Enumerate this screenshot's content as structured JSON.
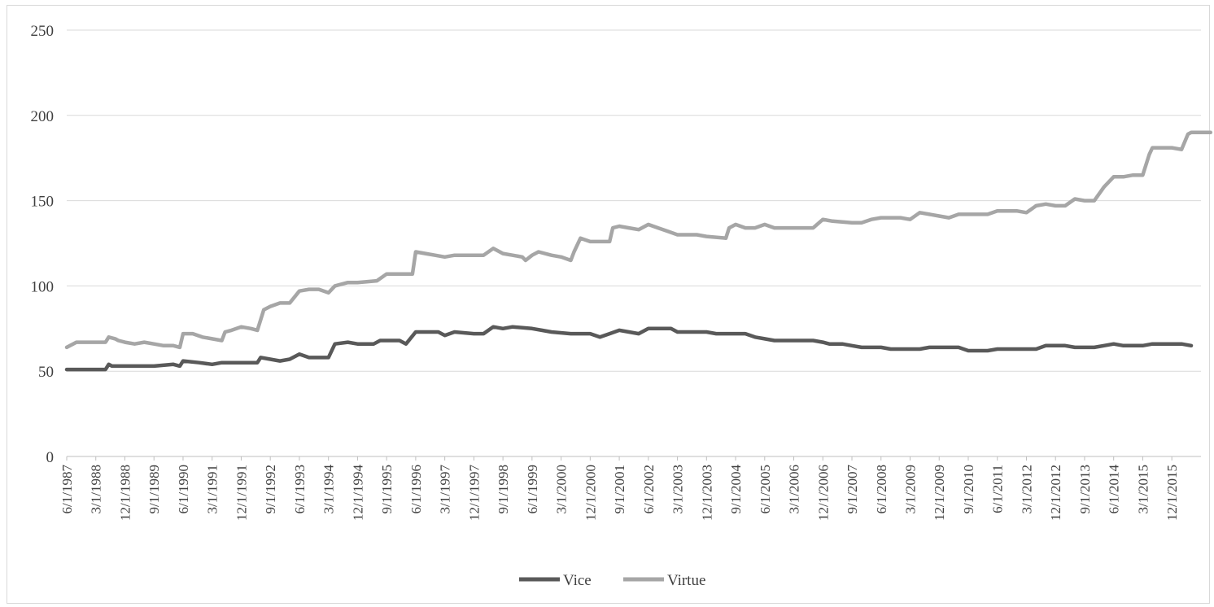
{
  "chart_data": {
    "type": "line",
    "title": "",
    "xlabel": "",
    "ylabel": "",
    "ylim": [
      0,
      250
    ],
    "y_ticks": [
      0,
      50,
      100,
      150,
      200,
      250
    ],
    "grid": "horizontal",
    "legend_position": "bottom",
    "x_tick_labels": [
      "6/1/1987",
      "3/1/1988",
      "12/1/1988",
      "9/1/1989",
      "6/1/1990",
      "3/1/1991",
      "12/1/1991",
      "9/1/1992",
      "6/1/1993",
      "3/1/1994",
      "12/1/1994",
      "9/1/1995",
      "6/1/1996",
      "3/1/1997",
      "12/1/1997",
      "9/1/1998",
      "6/1/1999",
      "3/1/2000",
      "12/1/2000",
      "9/1/2001",
      "6/1/2002",
      "3/1/2003",
      "12/1/2003",
      "9/1/2004",
      "6/1/2005",
      "3/1/2006",
      "12/1/2006",
      "9/1/2007",
      "6/1/2008",
      "3/1/2009",
      "12/1/2009",
      "9/1/2010",
      "6/1/2011",
      "3/1/2012",
      "12/1/2012",
      "9/1/2013",
      "6/1/2014",
      "3/1/2015",
      "12/1/2015"
    ],
    "x_start": "6/1/1987",
    "x_end": "6/1/2016",
    "series": [
      {
        "name": "Vice",
        "color": "#595959",
        "points": [
          [
            "6/1/1987",
            51
          ],
          [
            "6/1/1988",
            51
          ],
          [
            "7/1/1988",
            54
          ],
          [
            "8/1/1988",
            53
          ],
          [
            "9/1/1989",
            53
          ],
          [
            "3/1/1990",
            54
          ],
          [
            "5/1/1990",
            53
          ],
          [
            "6/1/1990",
            56
          ],
          [
            "11/1/1990",
            55
          ],
          [
            "3/1/1991",
            54
          ],
          [
            "6/1/1991",
            55
          ],
          [
            "12/1/1991",
            55
          ],
          [
            "5/1/1992",
            55
          ],
          [
            "6/1/1992",
            58
          ],
          [
            "9/1/1992",
            57
          ],
          [
            "12/1/1992",
            56
          ],
          [
            "3/1/1993",
            57
          ],
          [
            "6/1/1993",
            60
          ],
          [
            "9/1/1993",
            58
          ],
          [
            "3/1/1994",
            58
          ],
          [
            "5/1/1994",
            66
          ],
          [
            "9/1/1994",
            67
          ],
          [
            "12/1/1994",
            66
          ],
          [
            "5/1/1995",
            66
          ],
          [
            "7/1/1995",
            68
          ],
          [
            "1/1/1996",
            68
          ],
          [
            "3/1/1996",
            66
          ],
          [
            "6/1/1996",
            73
          ],
          [
            "1/1/1997",
            73
          ],
          [
            "3/1/1997",
            71
          ],
          [
            "6/1/1997",
            73
          ],
          [
            "12/1/1997",
            72
          ],
          [
            "3/1/1998",
            72
          ],
          [
            "6/1/1998",
            76
          ],
          [
            "9/1/1998",
            75
          ],
          [
            "12/1/1998",
            76
          ],
          [
            "6/1/1999",
            75
          ],
          [
            "9/1/1999",
            74
          ],
          [
            "12/1/1999",
            73
          ],
          [
            "6/1/2000",
            72
          ],
          [
            "12/1/2000",
            72
          ],
          [
            "3/1/2001",
            70
          ],
          [
            "6/1/2001",
            72
          ],
          [
            "9/1/2001",
            74
          ],
          [
            "12/1/2001",
            73
          ],
          [
            "3/1/2002",
            72
          ],
          [
            "6/1/2002",
            75
          ],
          [
            "1/1/2003",
            75
          ],
          [
            "3/1/2003",
            73
          ],
          [
            "12/1/2003",
            73
          ],
          [
            "3/1/2004",
            72
          ],
          [
            "9/1/2004",
            72
          ],
          [
            "12/1/2004",
            72
          ],
          [
            "3/1/2005",
            70
          ],
          [
            "6/1/2005",
            69
          ],
          [
            "9/1/2005",
            68
          ],
          [
            "9/1/2006",
            68
          ],
          [
            "12/1/2006",
            67
          ],
          [
            "2/1/2007",
            66
          ],
          [
            "6/1/2007",
            66
          ],
          [
            "9/1/2007",
            65
          ],
          [
            "12/1/2007",
            64
          ],
          [
            "6/1/2008",
            64
          ],
          [
            "9/1/2008",
            63
          ],
          [
            "6/1/2009",
            63
          ],
          [
            "9/1/2009",
            64
          ],
          [
            "6/1/2010",
            64
          ],
          [
            "9/1/2010",
            62
          ],
          [
            "3/1/2011",
            62
          ],
          [
            "6/1/2011",
            63
          ],
          [
            "12/1/2011",
            63
          ],
          [
            "6/1/2012",
            63
          ],
          [
            "9/1/2012",
            65
          ],
          [
            "3/1/2013",
            65
          ],
          [
            "6/1/2013",
            64
          ],
          [
            "12/1/2013",
            64
          ],
          [
            "3/1/2014",
            65
          ],
          [
            "6/1/2014",
            66
          ],
          [
            "9/1/2014",
            65
          ],
          [
            "3/1/2015",
            65
          ],
          [
            "6/1/2015",
            66
          ],
          [
            "3/1/2016",
            66
          ],
          [
            "6/1/2016",
            65
          ]
        ]
      },
      {
        "name": "Virtue",
        "color": "#a6a6a6",
        "points": [
          [
            "6/1/1987",
            64
          ],
          [
            "9/1/1987",
            67
          ],
          [
            "6/1/1988",
            67
          ],
          [
            "7/1/1988",
            70
          ],
          [
            "9/1/1988",
            69
          ],
          [
            "10/1/1988",
            68
          ],
          [
            "12/1/1988",
            67
          ],
          [
            "3/1/1989",
            66
          ],
          [
            "6/1/1989",
            67
          ],
          [
            "9/1/1989",
            66
          ],
          [
            "12/1/1989",
            65
          ],
          [
            "3/1/1990",
            65
          ],
          [
            "5/1/1990",
            64
          ],
          [
            "6/1/1990",
            72
          ],
          [
            "9/1/1990",
            72
          ],
          [
            "12/1/1990",
            70
          ],
          [
            "3/1/1991",
            69
          ],
          [
            "6/1/1991",
            68
          ],
          [
            "7/1/1991",
            73
          ],
          [
            "9/1/1991",
            74
          ],
          [
            "12/1/1991",
            76
          ],
          [
            "3/1/1992",
            75
          ],
          [
            "5/1/1992",
            74
          ],
          [
            "7/1/1992",
            86
          ],
          [
            "9/1/1992",
            88
          ],
          [
            "12/1/1992",
            90
          ],
          [
            "3/1/1993",
            90
          ],
          [
            "6/1/1993",
            97
          ],
          [
            "9/1/1993",
            98
          ],
          [
            "12/1/1993",
            98
          ],
          [
            "3/1/1994",
            96
          ],
          [
            "5/1/1994",
            100
          ],
          [
            "9/1/1994",
            102
          ],
          [
            "12/1/1994",
            102
          ],
          [
            "6/1/1995",
            103
          ],
          [
            "9/1/1995",
            107
          ],
          [
            "12/1/1995",
            107
          ],
          [
            "5/1/1996",
            107
          ],
          [
            "6/1/1996",
            120
          ],
          [
            "9/1/1996",
            119
          ],
          [
            "12/1/1996",
            118
          ],
          [
            "3/1/1997",
            117
          ],
          [
            "6/1/1997",
            118
          ],
          [
            "12/1/1997",
            118
          ],
          [
            "3/1/1998",
            118
          ],
          [
            "6/1/1998",
            122
          ],
          [
            "9/1/1998",
            119
          ],
          [
            "12/1/1998",
            118
          ],
          [
            "3/1/1999",
            117
          ],
          [
            "4/1/1999",
            115
          ],
          [
            "6/1/1999",
            118
          ],
          [
            "8/1/1999",
            120
          ],
          [
            "12/1/1999",
            118
          ],
          [
            "3/1/2000",
            117
          ],
          [
            "6/1/2000",
            115
          ],
          [
            "7/1/2000",
            120
          ],
          [
            "9/1/2000",
            128
          ],
          [
            "12/1/2000",
            126
          ],
          [
            "6/1/2001",
            126
          ],
          [
            "7/1/2001",
            134
          ],
          [
            "9/1/2001",
            135
          ],
          [
            "12/1/2001",
            134
          ],
          [
            "3/1/2002",
            133
          ],
          [
            "6/1/2002",
            136
          ],
          [
            "9/1/2002",
            134
          ],
          [
            "12/1/2002",
            132
          ],
          [
            "3/1/2003",
            130
          ],
          [
            "9/1/2003",
            130
          ],
          [
            "12/1/2003",
            129
          ],
          [
            "6/1/2004",
            128
          ],
          [
            "7/1/2004",
            134
          ],
          [
            "9/1/2004",
            136
          ],
          [
            "12/1/2004",
            134
          ],
          [
            "3/1/2005",
            134
          ],
          [
            "6/1/2005",
            136
          ],
          [
            "9/1/2005",
            134
          ],
          [
            "3/1/2006",
            134
          ],
          [
            "9/1/2006",
            134
          ],
          [
            "12/1/2006",
            139
          ],
          [
            "3/1/2007",
            138
          ],
          [
            "9/1/2007",
            137
          ],
          [
            "12/1/2007",
            137
          ],
          [
            "3/1/2008",
            139
          ],
          [
            "6/1/2008",
            140
          ],
          [
            "9/1/2008",
            140
          ],
          [
            "12/1/2008",
            140
          ],
          [
            "3/1/2009",
            139
          ],
          [
            "6/1/2009",
            143
          ],
          [
            "9/1/2009",
            142
          ],
          [
            "12/1/2009",
            141
          ],
          [
            "3/1/2010",
            140
          ],
          [
            "6/1/2010",
            142
          ],
          [
            "9/1/2010",
            142
          ],
          [
            "3/1/2011",
            142
          ],
          [
            "6/1/2011",
            144
          ],
          [
            "12/1/2011",
            144
          ],
          [
            "3/1/2012",
            143
          ],
          [
            "6/1/2012",
            147
          ],
          [
            "9/1/2012",
            148
          ],
          [
            "12/1/2012",
            147
          ],
          [
            "3/1/2013",
            147
          ],
          [
            "6/1/2013",
            151
          ],
          [
            "9/1/2013",
            150
          ],
          [
            "12/1/2013",
            150
          ],
          [
            "3/1/2014",
            158
          ],
          [
            "6/1/2014",
            164
          ],
          [
            "9/1/2014",
            164
          ],
          [
            "12/1/2014",
            165
          ],
          [
            "3/1/2015",
            165
          ],
          [
            "5/1/2015",
            177
          ],
          [
            "6/1/2015",
            181
          ],
          [
            "12/1/2015",
            181
          ],
          [
            "3/1/2016",
            180
          ],
          [
            "5/1/2016",
            189
          ],
          [
            "6/1/2016",
            190
          ],
          [
            "12/1/2016",
            190
          ]
        ]
      }
    ]
  }
}
